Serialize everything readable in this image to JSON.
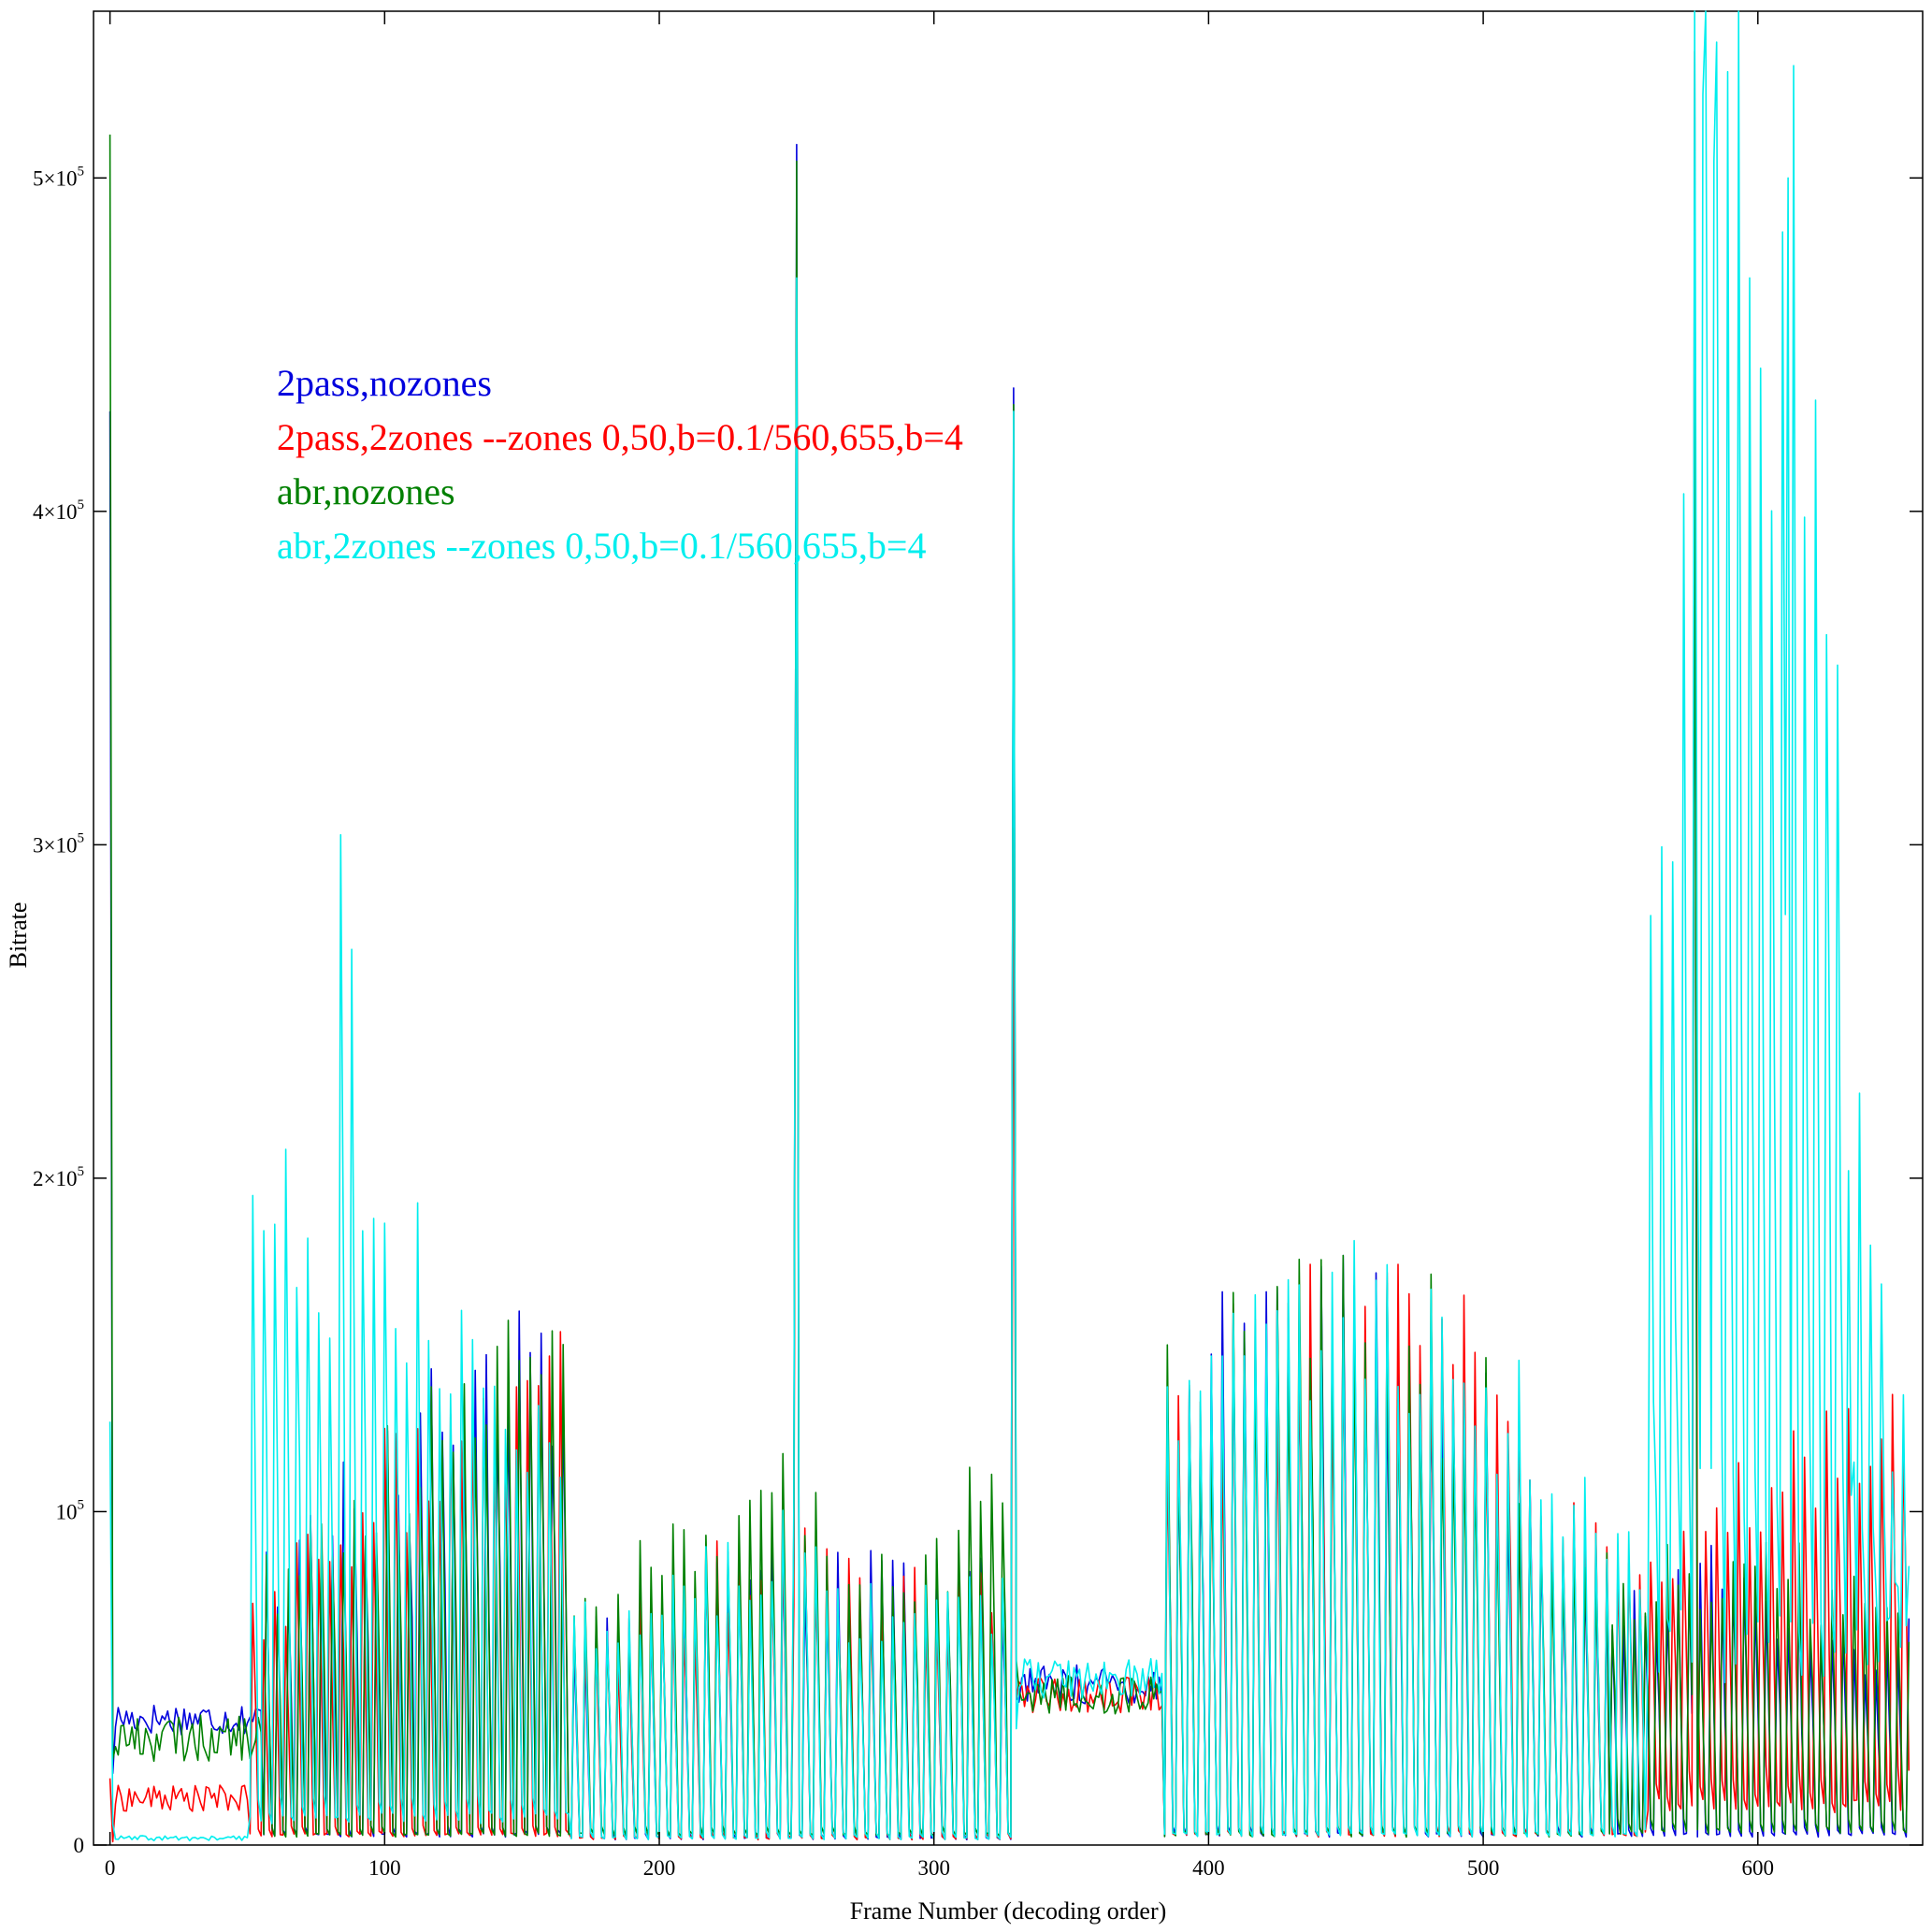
{
  "chart_data": {
    "type": "line",
    "title": "",
    "xlabel": "Frame Number (decoding order)",
    "ylabel": "Bitrate",
    "xlim": [
      -6,
      660
    ],
    "ylim": [
      0,
      550000
    ],
    "grid": false,
    "legend_placement": "top-left",
    "x_ticks": [
      0,
      100,
      200,
      300,
      400,
      500,
      600
    ],
    "x_tick_labels": [
      "0",
      "100",
      "200",
      "300",
      "400",
      "500",
      "600"
    ],
    "y_ticks": [
      0,
      100000,
      200000,
      300000,
      400000,
      500000
    ],
    "y_tick_labels": [
      {
        "mantissa": "0",
        "exponent": ""
      },
      {
        "mantissa": "10",
        "exponent": "5"
      },
      {
        "mantissa": "2×10",
        "exponent": "5"
      },
      {
        "mantissa": "3×10",
        "exponent": "5"
      },
      {
        "mantissa": "4×10",
        "exponent": "5"
      },
      {
        "mantissa": "5×10",
        "exponent": "5"
      }
    ],
    "frame_count": 655,
    "series": [
      {
        "name": "2pass,nozones",
        "color": "#0000dd",
        "segments": [
          {
            "from": 0,
            "to": 1,
            "mode": "spike",
            "value": 430000
          },
          {
            "from": 2,
            "to": 55,
            "mode": "noise",
            "value": 38000,
            "spread": 5000
          },
          {
            "from": 56,
            "to": 167,
            "mode": "sawtooth",
            "start": 3000,
            "peaks": [
              80000,
              90000,
              100000,
              110000,
              125000,
              135000,
              140000,
              138000
            ],
            "period": 4
          },
          {
            "from": 168,
            "to": 330,
            "mode": "sawtooth",
            "start": 2000,
            "peaks": [
              60000,
              70000,
              80000,
              85000,
              80000,
              75000,
              78000
            ],
            "period": 4
          },
          {
            "from": 331,
            "to": 383,
            "mode": "noise",
            "value": 48000,
            "spread": 6000
          },
          {
            "from": 384,
            "to": 545,
            "mode": "sawtooth",
            "start": 3000,
            "peaks": [
              130000,
              145000,
              155000,
              160000,
              150000,
              130000,
              100000,
              85000
            ],
            "period": 4
          },
          {
            "from": 546,
            "to": 655,
            "mode": "sawtooth",
            "start": 3000,
            "peaks": [
              70000,
              75000,
              80000,
              70000,
              65000,
              60000
            ],
            "period": 4
          }
        ],
        "spikes": [
          {
            "x": 250,
            "y": 510000
          },
          {
            "x": 329,
            "y": 437000
          },
          {
            "x": 577,
            "y": 455000
          }
        ]
      },
      {
        "name": "2pass,2zones --zones 0,50,b=0.1/560,655,b=4",
        "color": "#ff0000",
        "segments": [
          {
            "from": 0,
            "to": 1,
            "mode": "spike",
            "value": 20000
          },
          {
            "from": 2,
            "to": 50,
            "mode": "noise",
            "value": 14000,
            "spread": 4000
          },
          {
            "from": 51,
            "to": 167,
            "mode": "sawtooth",
            "start": 3000,
            "peaks": [
              70000,
              85000,
              95000,
              110000,
              120000,
              130000,
              138000,
              136000
            ],
            "period": 4
          },
          {
            "from": 168,
            "to": 330,
            "mode": "sawtooth",
            "start": 2000,
            "peaks": [
              60000,
              70000,
              80000,
              85000,
              80000,
              75000,
              78000
            ],
            "period": 4
          },
          {
            "from": 331,
            "to": 383,
            "mode": "noise",
            "value": 45000,
            "spread": 6000
          },
          {
            "from": 384,
            "to": 559,
            "mode": "sawtooth",
            "start": 3000,
            "peaks": [
              130000,
              145000,
              155000,
              160000,
              150000,
              130000,
              100000,
              85000
            ],
            "period": 4
          },
          {
            "from": 560,
            "to": 655,
            "mode": "sawtooth",
            "start": 12000,
            "peaks": [
              90000,
              95000,
              100000,
              110000,
              115000,
              120000
            ],
            "period": 4
          }
        ],
        "spikes": [
          {
            "x": 250,
            "y": 465000
          },
          {
            "x": 329,
            "y": 305000
          },
          {
            "x": 577,
            "y": 538000
          }
        ]
      },
      {
        "name": "abr,nozones",
        "color": "#008000",
        "segments": [
          {
            "from": 0,
            "to": 1,
            "mode": "spike",
            "value": 513000
          },
          {
            "from": 2,
            "to": 55,
            "mode": "noise",
            "value": 32000,
            "spread": 7000
          },
          {
            "from": 56,
            "to": 167,
            "mode": "sawtooth",
            "start": 3000,
            "peaks": [
              80000,
              90000,
              100000,
              110000,
              125000,
              135000,
              140000,
              138000
            ],
            "period": 4
          },
          {
            "from": 168,
            "to": 330,
            "mode": "sawtooth",
            "start": 3000,
            "peaks": [
              70000,
              85000,
              95000,
              105000,
              80000,
              85000,
              110000
            ],
            "period": 4
          },
          {
            "from": 331,
            "to": 383,
            "mode": "noise",
            "value": 45000,
            "spread": 6000
          },
          {
            "from": 384,
            "to": 545,
            "mode": "sawtooth",
            "start": 3000,
            "peaks": [
              133000,
              145000,
              155000,
              160000,
              150000,
              130000,
              100000,
              85000
            ],
            "period": 4
          },
          {
            "from": 546,
            "to": 655,
            "mode": "sawtooth",
            "start": 4000,
            "peaks": [
              75000,
              80000,
              85000,
              80000,
              75000,
              70000
            ],
            "period": 4
          }
        ],
        "spikes": [
          {
            "x": 250,
            "y": 505000
          },
          {
            "x": 329,
            "y": 432000
          },
          {
            "x": 577,
            "y": 450000
          }
        ]
      },
      {
        "name": "abr,2zones --zones 0,50,b=0.1/560,655,b=4",
        "color": "#00eeee",
        "segments": [
          {
            "from": 0,
            "to": 1,
            "mode": "spike",
            "value": 127000
          },
          {
            "from": 2,
            "to": 50,
            "mode": "noise",
            "value": 2000,
            "spread": 800
          },
          {
            "from": 51,
            "to": 167,
            "mode": "sawtooth",
            "start": 8000,
            "peaks": [
              207000,
              192000,
              168000,
              275000,
              195000,
              162000,
              170000,
              150000,
              140000,
              135000,
              130000,
              128000
            ],
            "period": 4
          },
          {
            "from": 168,
            "to": 330,
            "mode": "sawtooth",
            "start": 2000,
            "peaks": [
              65000,
              72000,
              80000,
              90000,
              70000,
              68000,
              70000
            ],
            "period": 4
          },
          {
            "from": 331,
            "to": 383,
            "mode": "noise",
            "value": 50000,
            "spread": 6000
          },
          {
            "from": 384,
            "to": 559,
            "mode": "sawtooth",
            "start": 3000,
            "peaks": [
              130000,
              145000,
              155000,
              160000,
              150000,
              130000,
              100000,
              85000
            ],
            "period": 4
          },
          {
            "from": 560,
            "to": 655,
            "mode": "sawtooth",
            "start": 60000,
            "peaks": [
              278000,
              410000,
              555000,
              525000,
              430000,
              470000,
              380000,
              400000,
              200000,
              165000,
              130000
            ],
            "period": 4
          }
        ],
        "spikes": [
          {
            "x": 250,
            "y": 470000
          },
          {
            "x": 329,
            "y": 430000
          },
          {
            "x": 577,
            "y": 550000
          },
          {
            "x": 580,
            "y": 525000
          },
          {
            "x": 584,
            "y": 505000
          },
          {
            "x": 597,
            "y": 470000
          },
          {
            "x": 611,
            "y": 500000
          }
        ]
      }
    ],
    "legend": [
      {
        "label": "2pass,nozones",
        "color": "#0000dd"
      },
      {
        "label": "2pass,2zones --zones 0,50,b=0.1/560,655,b=4",
        "color": "#ff0000"
      },
      {
        "label": "abr,nozones",
        "color": "#008000"
      },
      {
        "label": "abr,2zones --zones 0,50,b=0.1/560,655,b=4",
        "color": "#00eeee"
      }
    ]
  }
}
